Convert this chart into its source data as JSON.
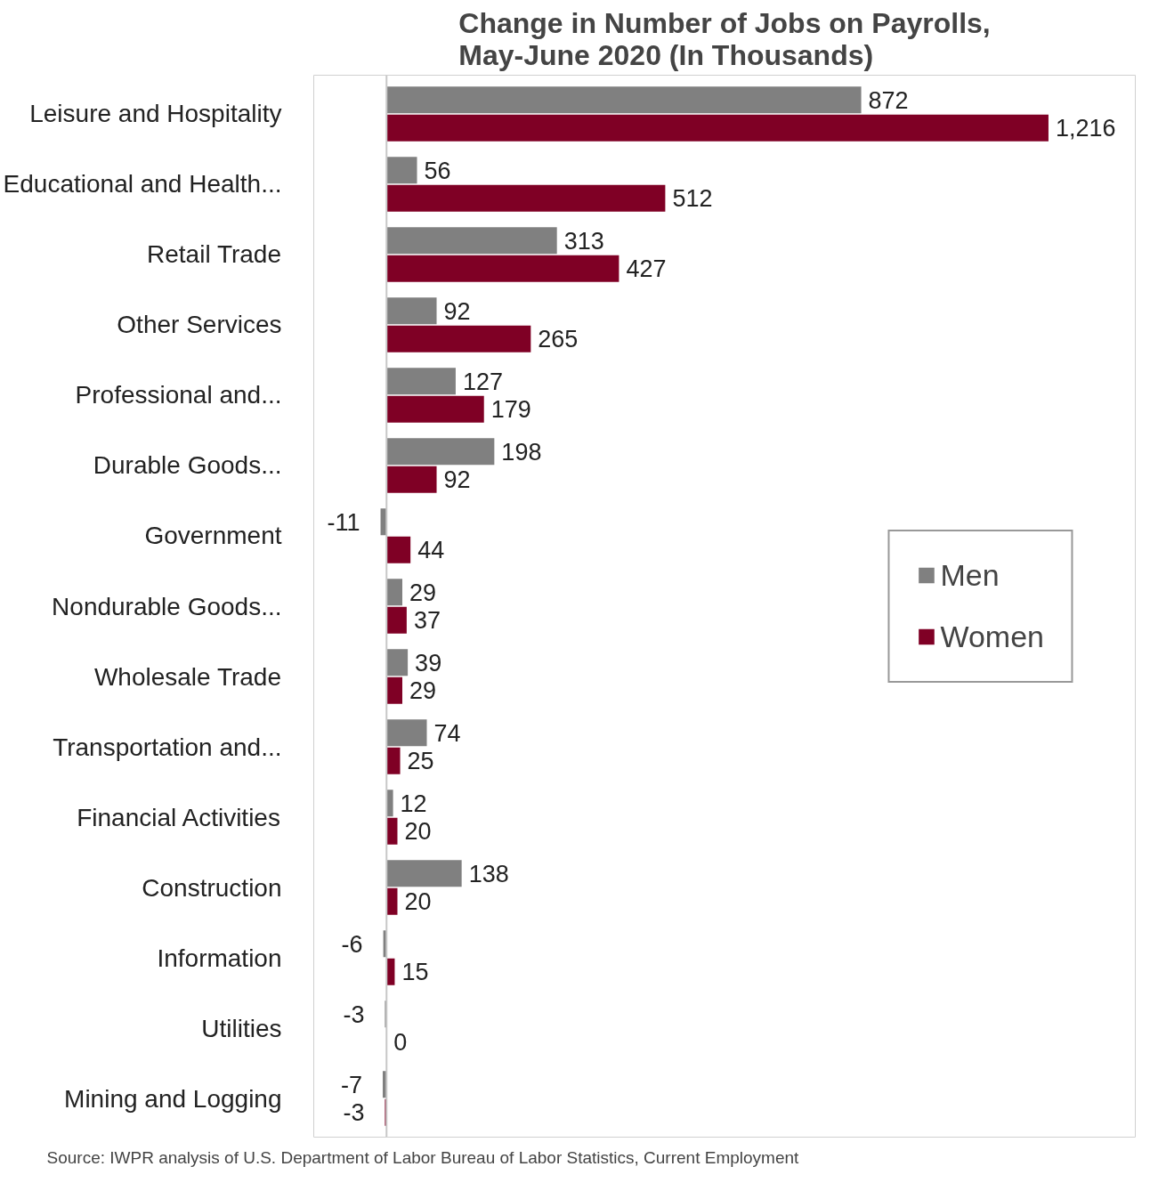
{
  "chart_data": {
    "type": "bar",
    "orientation": "horizontal",
    "title": "Change in Number of Jobs on Payrolls,\nMay-June 2020 (In Thousands)",
    "categories": [
      "Leisure and Hospitality",
      "Educational and Health...",
      "Retail Trade",
      "Other Services",
      "Professional and...",
      "Durable Goods...",
      "Government",
      "Nondurable Goods...",
      "Wholesale Trade",
      "Transportation and...",
      "Financial Activities",
      "Construction",
      "Information",
      "Utilities",
      "Mining and Logging"
    ],
    "series": [
      {
        "name": "Men",
        "color": "#808080",
        "values": [
          872,
          56,
          313,
          92,
          127,
          198,
          -11,
          29,
          39,
          74,
          12,
          138,
          -6,
          -3,
          -7
        ],
        "value_labels": [
          "872",
          "56",
          "313",
          "92",
          "127",
          "198",
          "-11",
          "29",
          "39",
          "74",
          "12",
          "138",
          "-6",
          "-3",
          "-7"
        ]
      },
      {
        "name": "Women",
        "color": "#7f0025",
        "values": [
          1216,
          512,
          427,
          265,
          179,
          92,
          44,
          37,
          29,
          25,
          20,
          20,
          15,
          0,
          -3
        ],
        "value_labels": [
          "1,216",
          "512",
          "427",
          "265",
          "179",
          "92",
          "44",
          "37",
          "29",
          "25",
          "20",
          "20",
          "15",
          "0",
          "-3"
        ]
      }
    ],
    "legend": "right",
    "annotations": [
      "Source: IWPR analysis of U.S. Department of Labor Bureau of Labor Statistics, Current Employment"
    ]
  }
}
